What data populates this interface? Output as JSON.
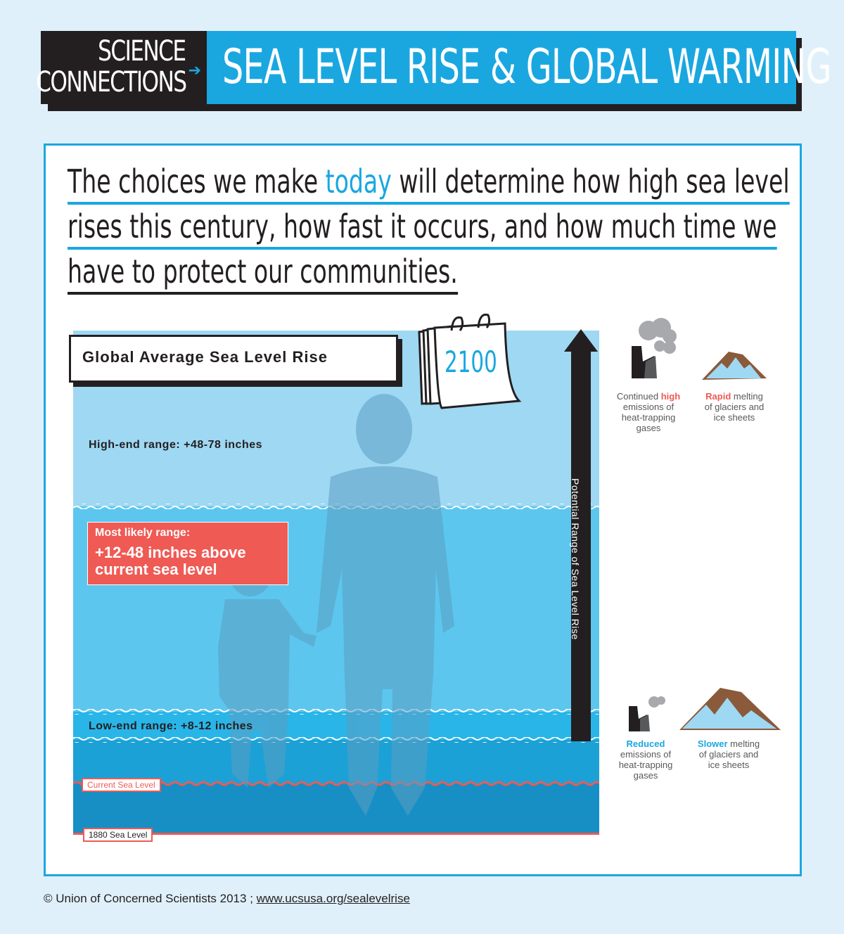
{
  "header": {
    "brand_line1": "SCIENCE",
    "brand_line2": "CONNECTIONS",
    "arrow_glyph": "➔",
    "title": "SEA LEVEL RISE & GLOBAL WARMING"
  },
  "headline": {
    "line1_pre": "The choices we make ",
    "line1_highlight": "today",
    "line1_post": " will determine how high sea level",
    "line2": "rises this century, how fast it occurs, and how much time we",
    "line3": "have to protect our communities."
  },
  "graphic": {
    "box_title": "Global Average Sea Level Rise",
    "calendar_year": "2100",
    "high_end": "High-end range: +48-78 inches",
    "likely_title": "Most likely range:",
    "likely_line1": "+12-48 inches above",
    "likely_line2": "current sea level",
    "low_end": "Low-end range: +8-12 inches",
    "current_sea_level": "Current Sea Level",
    "sea_level_1880": "1880 Sea Level",
    "arrow_label": "Potential Range of Sea Level Rise"
  },
  "side_top": {
    "emissions_pre": "Continued ",
    "emissions_em": "high",
    "emissions_rest": [
      "emissions of",
      "heat-trapping",
      "gases"
    ],
    "melt_em": "Rapid",
    "melt_rest": [
      " melting",
      "of glaciers and",
      "ice sheets"
    ]
  },
  "side_bottom": {
    "emissions_em": "Reduced",
    "emissions_rest": [
      "emissions of",
      "heat-trapping",
      "gases"
    ],
    "melt_em": "Slower",
    "melt_rest": [
      " melting",
      "of glaciers and",
      "ice sheets"
    ]
  },
  "footer": {
    "copyright": "© Union of Concerned Scientists 2013 ;",
    "url": "www.ucsusa.org/sealevelrise"
  },
  "colors": {
    "accent_blue": "#1aa7e0",
    "red": "#ef5a54",
    "dark": "#231f20"
  }
}
